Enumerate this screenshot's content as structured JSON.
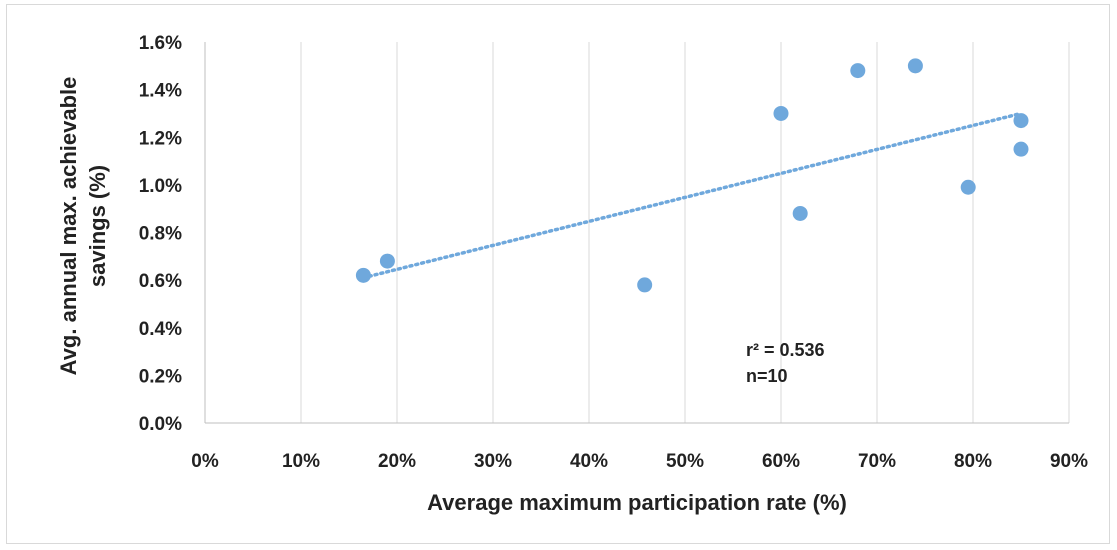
{
  "chart_data": {
    "type": "scatter",
    "title": "",
    "xlabel": "Average maximum participation rate (%)",
    "ylabel_lines": [
      "Avg. annual max. achievable",
      "savings (%)"
    ],
    "xlim": [
      0,
      90
    ],
    "ylim": [
      0.0,
      1.6
    ],
    "x_ticks": [
      0,
      10,
      20,
      30,
      40,
      50,
      60,
      70,
      80,
      90
    ],
    "x_tick_labels": [
      "0%",
      "10%",
      "20%",
      "30%",
      "40%",
      "50%",
      "60%",
      "70%",
      "80%",
      "90%"
    ],
    "y_ticks": [
      0.0,
      0.2,
      0.4,
      0.6,
      0.8,
      1.0,
      1.2,
      1.4,
      1.6
    ],
    "y_tick_labels": [
      "0.0%",
      "0.2%",
      "0.4%",
      "0.6%",
      "0.8%",
      "1.0%",
      "1.2%",
      "1.4%",
      "1.6%"
    ],
    "grid": "vertical",
    "series": [
      {
        "points": [
          {
            "x": 16.5,
            "y": 0.62
          },
          {
            "x": 19.0,
            "y": 0.68
          },
          {
            "x": 45.8,
            "y": 0.58
          },
          {
            "x": 60.0,
            "y": 1.3
          },
          {
            "x": 62.0,
            "y": 0.88
          },
          {
            "x": 68.0,
            "y": 1.48
          },
          {
            "x": 74.0,
            "y": 1.5
          },
          {
            "x": 79.5,
            "y": 0.99
          },
          {
            "x": 85.0,
            "y": 1.27
          },
          {
            "x": 85.0,
            "y": 1.15
          }
        ]
      }
    ],
    "trendline": {
      "type": "linear",
      "style": "dotted",
      "start": {
        "x": 16.5,
        "y": 0.61
      },
      "end": {
        "x": 85.0,
        "y": 1.3
      }
    },
    "annotations": [
      "r² = 0.536",
      "n=10"
    ],
    "colors": {
      "marker": "#6fa8dc",
      "trendline": "#6fa8dc",
      "grid": "#d9d9d9",
      "axis": "#bfbfbf"
    }
  }
}
